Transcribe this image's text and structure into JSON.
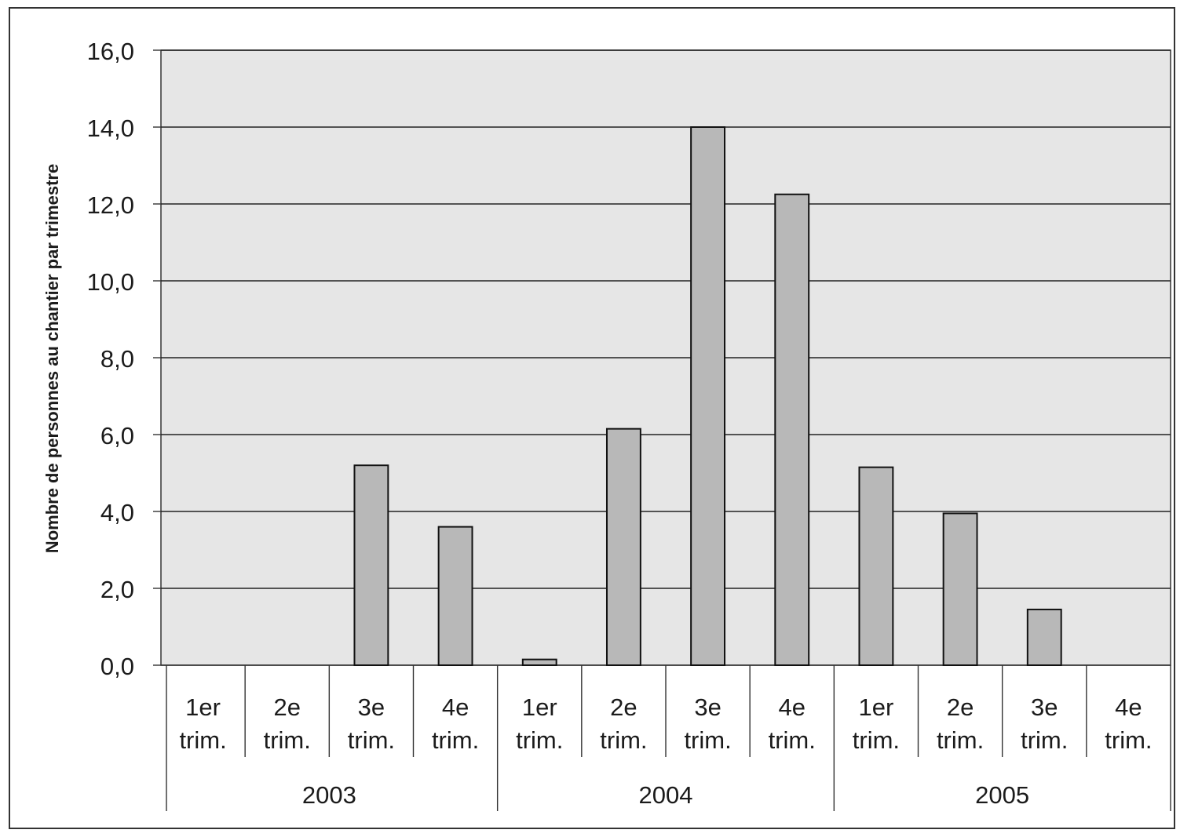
{
  "chart_data": {
    "type": "bar",
    "title": "",
    "xlabel": "",
    "ylabel": "Nombre de personnes au chantier par trimestre",
    "ylim": [
      0,
      16
    ],
    "yticks": [
      "0,0",
      "2,0",
      "4,0",
      "6,0",
      "8,0",
      "10,0",
      "12,0",
      "14,0",
      "16,0"
    ],
    "grid": true,
    "legend": "none",
    "categories": [
      [
        "1er",
        "trim."
      ],
      [
        "2e",
        "trim."
      ],
      [
        "3e",
        "trim."
      ],
      [
        "4e",
        "trim."
      ],
      [
        "1er",
        "trim."
      ],
      [
        "2e",
        "trim."
      ],
      [
        "3e",
        "trim."
      ],
      [
        "4e",
        "trim."
      ],
      [
        "1er",
        "trim."
      ],
      [
        "2e",
        "trim."
      ],
      [
        "3e",
        "trim."
      ],
      [
        "4e",
        "trim."
      ]
    ],
    "groups": [
      {
        "label": "2003",
        "count": 4
      },
      {
        "label": "2004",
        "count": 4
      },
      {
        "label": "2005",
        "count": 4
      }
    ],
    "values": [
      0,
      0,
      5.2,
      3.6,
      0.15,
      6.15,
      14.0,
      12.25,
      5.15,
      3.95,
      1.45,
      0
    ],
    "colors": {
      "bar_fill": "#b8b8b8",
      "bar_stroke": "#111111",
      "plot_background": "#e6e6e6",
      "gridline": "#222222",
      "frame": "#333333"
    }
  }
}
